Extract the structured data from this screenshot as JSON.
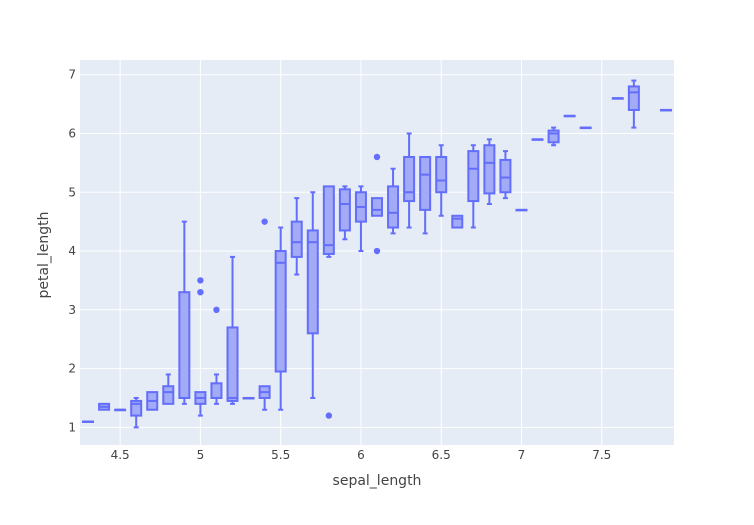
{
  "chart_data": {
    "type": "box",
    "xlabel": "sepal_length",
    "ylabel": "petal_length",
    "xlim": [
      4.25,
      7.95
    ],
    "ylim": [
      0.7,
      7.25
    ],
    "xticks": [
      4.5,
      5,
      5.5,
      6,
      6.5,
      7,
      7.5
    ],
    "xtick_labels": [
      "4.5",
      "5",
      "5.5",
      "6",
      "6.5",
      "7",
      "7.5"
    ],
    "yticks": [
      1,
      2,
      3,
      4,
      5,
      6,
      7
    ],
    "ytick_labels": [
      "1",
      "2",
      "3",
      "4",
      "5",
      "6",
      "7"
    ],
    "grid": true,
    "colors": {
      "plot_background": "#e5ecf6",
      "grid": "#ffffff",
      "box_fill": "#a3aaf6",
      "box_line": "#636efa",
      "paper": "#ffffff",
      "text": "#444444"
    },
    "boxes": [
      {
        "x": 4.3,
        "min": 1.1,
        "q1": 1.1,
        "median": 1.1,
        "q3": 1.1,
        "max": 1.1,
        "outliers": []
      },
      {
        "x": 4.4,
        "min": 1.3,
        "q1": 1.3,
        "median": 1.35,
        "q3": 1.4,
        "max": 1.4,
        "outliers": []
      },
      {
        "x": 4.5,
        "min": 1.3,
        "q1": 1.3,
        "median": 1.3,
        "q3": 1.3,
        "max": 1.3,
        "outliers": []
      },
      {
        "x": 4.6,
        "min": 1.0,
        "q1": 1.2,
        "median": 1.4,
        "q3": 1.45,
        "max": 1.5,
        "outliers": []
      },
      {
        "x": 4.7,
        "min": 1.3,
        "q1": 1.3,
        "median": 1.45,
        "q3": 1.6,
        "max": 1.6,
        "outliers": []
      },
      {
        "x": 4.8,
        "min": 1.4,
        "q1": 1.4,
        "median": 1.6,
        "q3": 1.7,
        "max": 1.9,
        "outliers": []
      },
      {
        "x": 4.9,
        "min": 1.4,
        "q1": 1.5,
        "median": 1.5,
        "q3": 3.3,
        "max": 4.5,
        "outliers": []
      },
      {
        "x": 5.0,
        "min": 1.2,
        "q1": 1.4,
        "median": 1.5,
        "q3": 1.6,
        "max": 1.6,
        "outliers": [
          3.3,
          3.5
        ]
      },
      {
        "x": 5.1,
        "min": 1.4,
        "q1": 1.5,
        "median": 1.5,
        "q3": 1.75,
        "max": 1.9,
        "outliers": [
          3.0
        ]
      },
      {
        "x": 5.2,
        "min": 1.4,
        "q1": 1.45,
        "median": 1.5,
        "q3": 2.7,
        "max": 3.9,
        "outliers": []
      },
      {
        "x": 5.3,
        "min": 1.5,
        "q1": 1.5,
        "median": 1.5,
        "q3": 1.5,
        "max": 1.5,
        "outliers": []
      },
      {
        "x": 5.4,
        "min": 1.3,
        "q1": 1.5,
        "median": 1.6,
        "q3": 1.7,
        "max": 1.7,
        "outliers": [
          4.5
        ]
      },
      {
        "x": 5.5,
        "min": 1.3,
        "q1": 1.95,
        "median": 3.8,
        "q3": 4.0,
        "max": 4.4,
        "outliers": []
      },
      {
        "x": 5.6,
        "min": 3.6,
        "q1": 3.9,
        "median": 4.15,
        "q3": 4.5,
        "max": 4.9,
        "outliers": []
      },
      {
        "x": 5.7,
        "min": 1.5,
        "q1": 2.6,
        "median": 4.15,
        "q3": 4.35,
        "max": 5.0,
        "outliers": []
      },
      {
        "x": 5.8,
        "min": 3.9,
        "q1": 3.95,
        "median": 4.1,
        "q3": 5.1,
        "max": 5.1,
        "outliers": [
          1.2
        ]
      },
      {
        "x": 5.9,
        "min": 4.2,
        "q1": 4.35,
        "median": 4.8,
        "q3": 5.05,
        "max": 5.1,
        "outliers": []
      },
      {
        "x": 6.0,
        "min": 4.0,
        "q1": 4.5,
        "median": 4.75,
        "q3": 5.0,
        "max": 5.1,
        "outliers": []
      },
      {
        "x": 6.1,
        "min": 4.6,
        "q1": 4.6,
        "median": 4.7,
        "q3": 4.9,
        "max": 4.9,
        "outliers": [
          4.0,
          5.6
        ]
      },
      {
        "x": 6.2,
        "min": 4.3,
        "q1": 4.4,
        "median": 4.65,
        "q3": 5.1,
        "max": 5.4,
        "outliers": []
      },
      {
        "x": 6.3,
        "min": 4.4,
        "q1": 4.85,
        "median": 5.0,
        "q3": 5.6,
        "max": 6.0,
        "outliers": []
      },
      {
        "x": 6.4,
        "min": 4.3,
        "q1": 4.7,
        "median": 5.3,
        "q3": 5.6,
        "max": 5.6,
        "outliers": []
      },
      {
        "x": 6.5,
        "min": 4.6,
        "q1": 5.0,
        "median": 5.2,
        "q3": 5.6,
        "max": 5.8,
        "outliers": []
      },
      {
        "x": 6.6,
        "min": 4.4,
        "q1": 4.4,
        "median": 4.55,
        "q3": 4.6,
        "max": 4.6,
        "outliers": []
      },
      {
        "x": 6.7,
        "min": 4.4,
        "q1": 4.85,
        "median": 5.4,
        "q3": 5.7,
        "max": 5.8,
        "outliers": []
      },
      {
        "x": 6.8,
        "min": 4.8,
        "q1": 4.98,
        "median": 5.5,
        "q3": 5.8,
        "max": 5.9,
        "outliers": []
      },
      {
        "x": 6.9,
        "min": 4.9,
        "q1": 5.0,
        "median": 5.25,
        "q3": 5.55,
        "max": 5.7,
        "outliers": []
      },
      {
        "x": 7.0,
        "min": 4.7,
        "q1": 4.7,
        "median": 4.7,
        "q3": 4.7,
        "max": 4.7,
        "outliers": []
      },
      {
        "x": 7.1,
        "min": 5.9,
        "q1": 5.9,
        "median": 5.9,
        "q3": 5.9,
        "max": 5.9,
        "outliers": []
      },
      {
        "x": 7.2,
        "min": 5.8,
        "q1": 5.85,
        "median": 6.0,
        "q3": 6.05,
        "max": 6.1,
        "outliers": []
      },
      {
        "x": 7.3,
        "min": 6.3,
        "q1": 6.3,
        "median": 6.3,
        "q3": 6.3,
        "max": 6.3,
        "outliers": []
      },
      {
        "x": 7.4,
        "min": 6.1,
        "q1": 6.1,
        "median": 6.1,
        "q3": 6.1,
        "max": 6.1,
        "outliers": []
      },
      {
        "x": 7.6,
        "min": 6.6,
        "q1": 6.6,
        "median": 6.6,
        "q3": 6.6,
        "max": 6.6,
        "outliers": []
      },
      {
        "x": 7.7,
        "min": 6.1,
        "q1": 6.4,
        "median": 6.7,
        "q3": 6.8,
        "max": 6.9,
        "outliers": []
      },
      {
        "x": 7.9,
        "min": 6.4,
        "q1": 6.4,
        "median": 6.4,
        "q3": 6.4,
        "max": 6.4,
        "outliers": []
      }
    ]
  }
}
